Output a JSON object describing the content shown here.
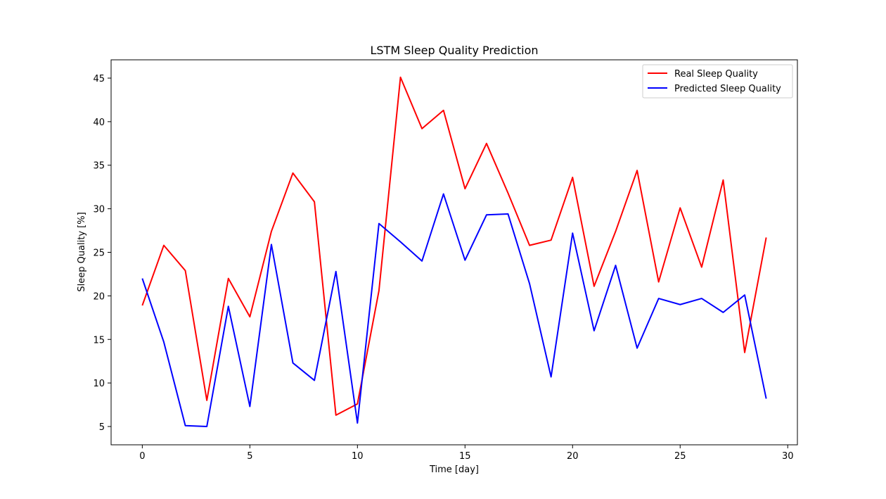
{
  "chart_data": {
    "type": "line",
    "title": "LSTM Sleep Quality Prediction",
    "xlabel": "Time [day]",
    "ylabel": "Sleep Quality [%]",
    "xlim": [
      -1.45,
      30.45
    ],
    "ylim": [
      2.9,
      47.1
    ],
    "xticks": [
      0,
      5,
      10,
      15,
      20,
      25,
      30
    ],
    "yticks": [
      5,
      10,
      15,
      20,
      25,
      30,
      35,
      40,
      45
    ],
    "grid": false,
    "legend_position": "top-right",
    "x": [
      0,
      1,
      2,
      3,
      4,
      5,
      6,
      7,
      8,
      9,
      10,
      11,
      12,
      13,
      14,
      15,
      16,
      17,
      18,
      19,
      20,
      21,
      22,
      23,
      24,
      25,
      26,
      27,
      28,
      29
    ],
    "series": [
      {
        "name": "Real Sleep Quality",
        "color": "#ff0000",
        "values": [
          18.9,
          25.8,
          22.9,
          8.0,
          22.0,
          17.6,
          27.4,
          34.1,
          30.8,
          6.3,
          7.6,
          20.6,
          45.1,
          39.2,
          41.3,
          32.3,
          37.5,
          31.8,
          25.8,
          26.4,
          33.6,
          21.1,
          27.4,
          34.4,
          21.6,
          30.1,
          23.3,
          33.3,
          13.5,
          26.7
        ]
      },
      {
        "name": "Predicted Sleep Quality",
        "color": "#0000ff",
        "values": [
          22.0,
          14.7,
          5.1,
          5.0,
          18.8,
          7.3,
          25.9,
          12.3,
          10.3,
          22.8,
          5.4,
          28.3,
          26.2,
          24.0,
          31.7,
          24.1,
          29.3,
          29.4,
          21.4,
          10.7,
          27.2,
          16.0,
          23.5,
          14.0,
          19.7,
          19.0,
          19.7,
          18.1,
          20.1,
          8.2
        ]
      }
    ]
  }
}
